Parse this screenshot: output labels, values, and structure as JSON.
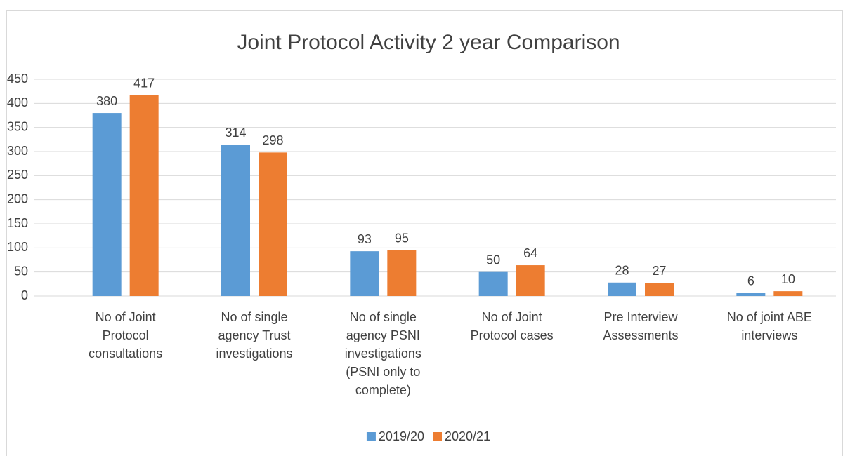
{
  "chart_data": {
    "type": "bar",
    "title": "Joint Protocol Activity 2 year Comparison",
    "categories": [
      "No of Joint Protocol consultations",
      "No of single agency Trust investigations",
      "No of single agency PSNI investigations (PSNI only to complete)",
      "No of Joint Protocol cases",
      "Pre Interview Assessments",
      "No of joint ABE interviews"
    ],
    "series": [
      {
        "name": "2019/20",
        "color": "#5b9bd5",
        "values": [
          380,
          314,
          93,
          50,
          28,
          6
        ]
      },
      {
        "name": "2020/21",
        "color": "#ed7d31",
        "values": [
          417,
          298,
          95,
          64,
          27,
          10
        ]
      }
    ],
    "ylim": [
      0,
      450
    ],
    "yticks": [
      0,
      50,
      100,
      150,
      200,
      250,
      300,
      350,
      400,
      450
    ],
    "grid": true,
    "legend": "bottom"
  }
}
